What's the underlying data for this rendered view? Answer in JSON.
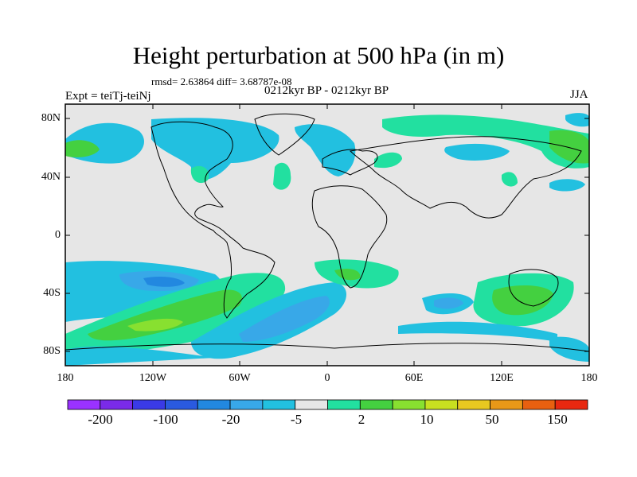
{
  "title": "Height perturbation at 500 hPa (in m)",
  "stats": "rmsd= 2.63864 diff= 3.68787e-08",
  "period": "0212kyr BP - 0212kyr BP",
  "experiment": "Expt = teiTj-teiNj",
  "season": "JJA",
  "map": {
    "lat_ticks": [
      "80N",
      "40N",
      "0",
      "40S",
      "80S"
    ],
    "lon_ticks": [
      "180",
      "120W",
      "60W",
      "0",
      "60E",
      "120E",
      "180"
    ],
    "background_color": "#e6e6e6"
  },
  "colorbar": {
    "colors": [
      "#9a32ff",
      "#7a2be8",
      "#3a3ae6",
      "#2a5adf",
      "#2288e0",
      "#38a8e8",
      "#22c0e0",
      "#e6e6e6",
      "#22e0a0",
      "#44d040",
      "#88e030",
      "#c8e020",
      "#e8c820",
      "#e89818",
      "#e86010",
      "#e82810"
    ],
    "labels": [
      "-200",
      "-100",
      "-20",
      "-5",
      "2",
      "10",
      "50",
      "150"
    ]
  }
}
